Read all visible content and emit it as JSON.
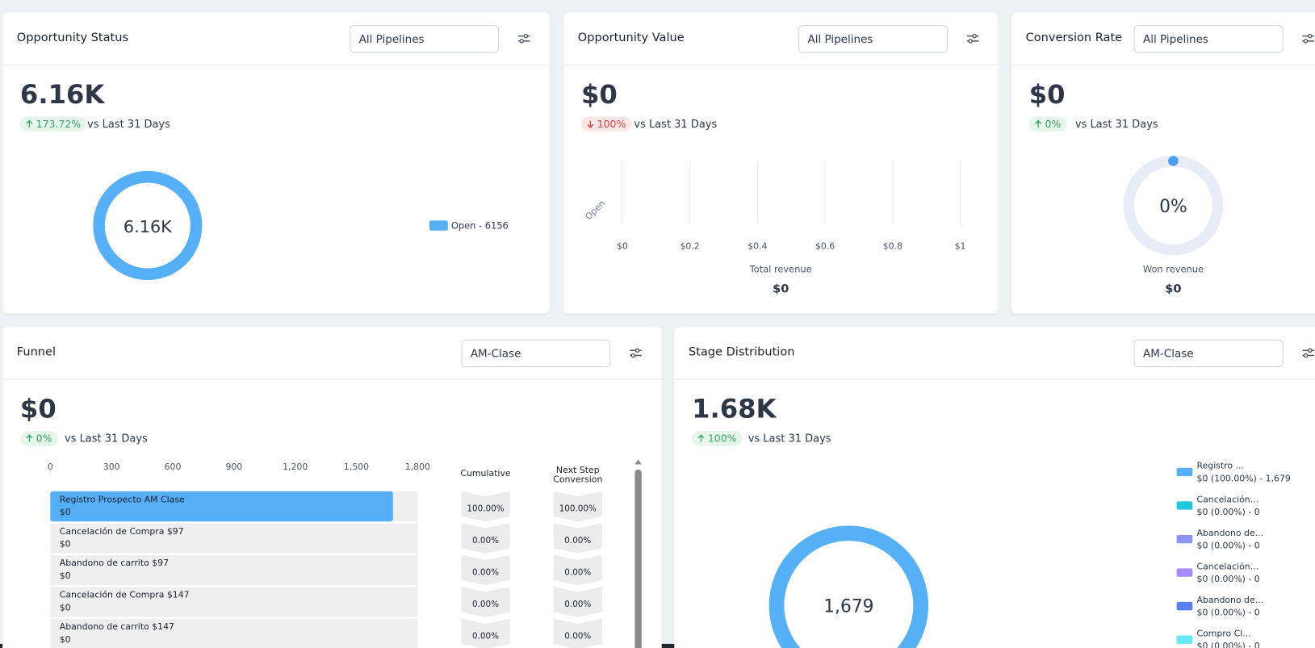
{
  "cards": [
    {
      "title": "Opportunity Status",
      "dropdown": "All Pipelines",
      "value": "6.16K",
      "change": "173.72%",
      "trend": "up",
      "comparison": "vs Last 31 Days",
      "chart": {
        "type": "donut",
        "center_label": "6.16K",
        "series": [
          {
            "name": "Open - 6156",
            "value": 6156,
            "color": "#55b0f7"
          }
        ]
      }
    },
    {
      "title": "Opportunity Value",
      "dropdown": "All Pipelines",
      "value": "$0",
      "change": "100%",
      "trend": "down",
      "comparison": "vs Last 31 Days",
      "chart": {
        "type": "bar",
        "categories": [
          "Open"
        ],
        "values": [
          0
        ],
        "color": "#55b0f7",
        "xlim": [
          0,
          1
        ],
        "xticks": [
          {
            "value": 0,
            "label": "$0"
          },
          {
            "value": 0.2,
            "label": "$0.2"
          },
          {
            "value": 0.4,
            "label": "$0.4"
          },
          {
            "value": 0.6,
            "label": "$0.6"
          },
          {
            "value": 0.8,
            "label": "$0.8"
          },
          {
            "value": 1,
            "label": "$1"
          }
        ],
        "grid": true,
        "footer_label": "Total revenue",
        "footer_value": "$0"
      }
    },
    {
      "title": "Conversion Rate",
      "dropdown": "All Pipelines",
      "value": "$0",
      "change": "0%",
      "trend": "up",
      "comparison": "vs Last 31 Days",
      "chart": {
        "type": "gauge",
        "value": 0,
        "label": "0%",
        "color": "#4a9ff5",
        "track_color": "#e8ecf7",
        "footer_label": "Won revenue",
        "footer_value": "$0"
      }
    },
    {
      "title": "Funnel",
      "dropdown": "AM-Clase",
      "value": "$0",
      "change": "0%",
      "trend": "up",
      "comparison": "vs Last 31 Days",
      "chart": {
        "type": "funnel",
        "color": "#55b0f7",
        "xlim": [
          0,
          1800
        ],
        "xticks": [
          0,
          300,
          600,
          900,
          {
            "value": 1200,
            "label": "1,200"
          },
          {
            "value": 1500,
            "label": "1,500"
          },
          {
            "value": 1800,
            "label": "1,800"
          }
        ],
        "columns": [
          "Cumulative",
          "Next Step Conversion"
        ],
        "stages": [
          {
            "name": "Registro   Prospecto AM Clase",
            "amount": "$0",
            "value": 1679,
            "cumulative": "100.00%",
            "next_step": "100.00%"
          },
          {
            "name": "Cancelación de Compra $97",
            "amount": "$0",
            "value": 0,
            "cumulative": "0.00%",
            "next_step": "0.00%"
          },
          {
            "name": "Abandono de carrito $97",
            "amount": "$0",
            "value": 0,
            "cumulative": "0.00%",
            "next_step": "0.00%"
          },
          {
            "name": "Cancelación de Compra $147",
            "amount": "$0",
            "value": 0,
            "cumulative": "0.00%",
            "next_step": "0.00%"
          },
          {
            "name": "Abandono de carrito $147",
            "amount": "$0",
            "value": 0,
            "cumulative": "0.00%",
            "next_step": "0.00%"
          }
        ]
      }
    },
    {
      "title": "Stage Distribution",
      "dropdown": "AM-Clase",
      "value": "1.68K",
      "change": "100%",
      "trend": "up",
      "comparison": "vs Last 31 Days",
      "chart": {
        "type": "donut",
        "center_label": "1,679",
        "series": [
          {
            "name": "Registro   ...",
            "detail": "$0 (100.00%) - 1,679",
            "value": 1679,
            "color": "#55b0f7"
          },
          {
            "name": "Cancelación...",
            "detail": "$0 (0.00%) - 0",
            "value": 0,
            "color": "#22c8e0"
          },
          {
            "name": "Abandono de...",
            "detail": "$0 (0.00%) - 0",
            "value": 0,
            "color": "#8b95f2"
          },
          {
            "name": "Cancelación...",
            "detail": "$0 (0.00%) - 0",
            "value": 0,
            "color": "#a78bfa"
          },
          {
            "name": "Abandono de...",
            "detail": "$0 (0.00%) - 0",
            "value": 0,
            "color": "#5b7ff5"
          },
          {
            "name": "Compro   Cl...",
            "detail": "$0 (0.00%) - 0",
            "value": 0,
            "color": "#67e8f9"
          }
        ]
      }
    }
  ]
}
